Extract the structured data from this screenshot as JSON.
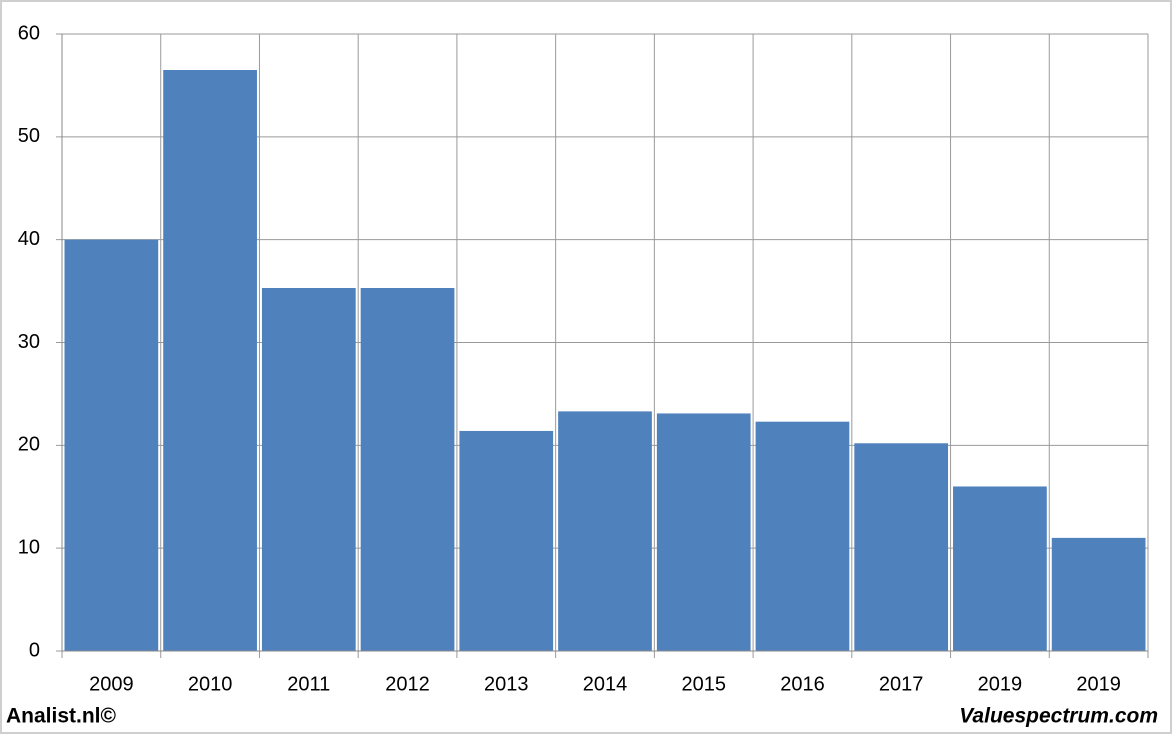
{
  "chart_data": {
    "type": "bar",
    "categories": [
      "2009",
      "2010",
      "2011",
      "2012",
      "2013",
      "2014",
      "2015",
      "2016",
      "2017",
      "2019",
      "2019"
    ],
    "values": [
      40,
      56.5,
      35.3,
      35.3,
      21.4,
      23.3,
      23.1,
      22.3,
      20.2,
      16.0,
      11.0
    ],
    "color": "#4f81bd",
    "ylim": [
      0,
      60
    ],
    "yticks": [
      0,
      10,
      20,
      30,
      40,
      50,
      60
    ],
    "grid": true,
    "footer_left": "Analist.nl©",
    "footer_right": "Valuespectrum.com"
  }
}
